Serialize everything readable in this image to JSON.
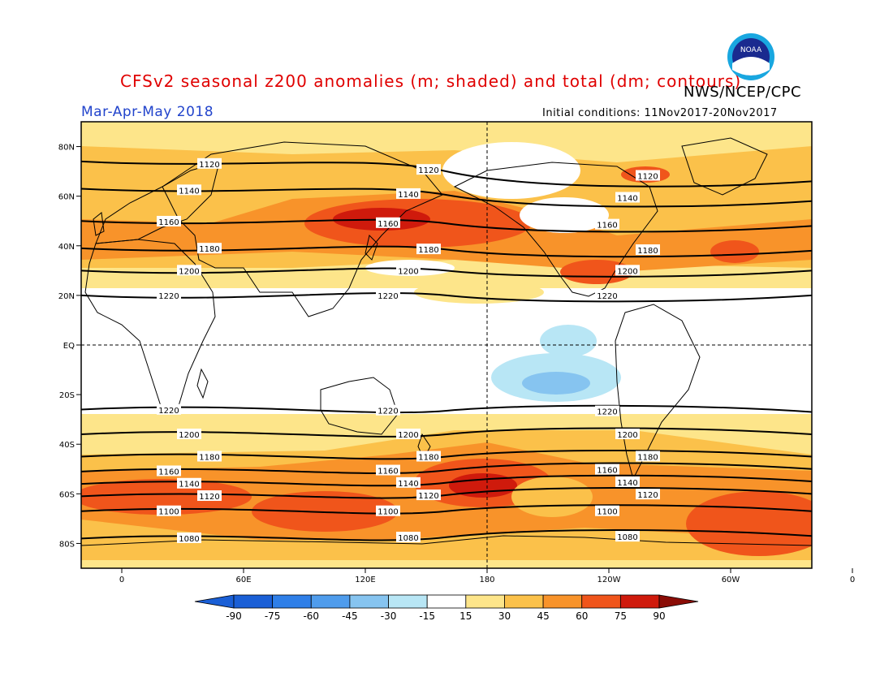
{
  "header": {
    "title": "CFSv2 seasonal z200 anomalies (m; shaded) and total (dm; contours)",
    "agency": "NWS/NCEP/CPC",
    "period": "Mar-Apr-May 2018",
    "initial_conditions": "Initial conditions: 11Nov2017-20Nov2017",
    "logo_text": "NOAA"
  },
  "axes": {
    "lat_labels": [
      "80N",
      "60N",
      "40N",
      "20N",
      "EQ",
      "20S",
      "40S",
      "60S",
      "80S"
    ],
    "lat_values": [
      80,
      60,
      40,
      20,
      0,
      -20,
      -40,
      -60,
      -80
    ],
    "lon_labels": [
      "0",
      "60E",
      "120E",
      "180",
      "120W",
      "60W",
      "0"
    ],
    "lon_values": [
      0,
      60,
      120,
      180,
      240,
      300,
      360
    ]
  },
  "colorbar": {
    "tick_labels": [
      "-90",
      "-75",
      "-60",
      "-45",
      "-30",
      "-15",
      "15",
      "30",
      "45",
      "60",
      "75",
      "90"
    ],
    "colors": [
      "#1a5fd6",
      "#2f7fe8",
      "#4f9cec",
      "#86c4f0",
      "#b8e6f5",
      "#ffffff",
      "#fde58a",
      "#fbc14a",
      "#f8932a",
      "#f0551b",
      "#cf1a0c"
    ]
  },
  "contours": [
    {
      "label": "1220",
      "values": [
        20,
        20
      ]
    },
    {
      "label": "1200",
      "values": [
        30,
        30
      ]
    },
    {
      "label": "1180",
      "values": [
        39,
        38
      ]
    },
    {
      "label": "1160",
      "values": [
        50,
        48
      ]
    },
    {
      "label": "1140",
      "values": [
        63,
        58
      ]
    },
    {
      "label": "1120",
      "values": [
        74,
        66
      ]
    },
    {
      "label": "1220",
      "values": [
        -26,
        -27
      ]
    },
    {
      "label": "1200",
      "values": [
        -36,
        -36
      ]
    },
    {
      "label": "1180",
      "values": [
        -45,
        -45
      ]
    },
    {
      "label": "1160",
      "values": [
        -51,
        -50
      ]
    },
    {
      "label": "1140",
      "values": [
        -56,
        -55
      ]
    },
    {
      "label": "1120",
      "values": [
        -61,
        -60
      ]
    },
    {
      "label": "1100",
      "values": [
        -67,
        -67
      ]
    },
    {
      "label": "1080",
      "values": [
        -78,
        -77
      ]
    }
  ]
}
